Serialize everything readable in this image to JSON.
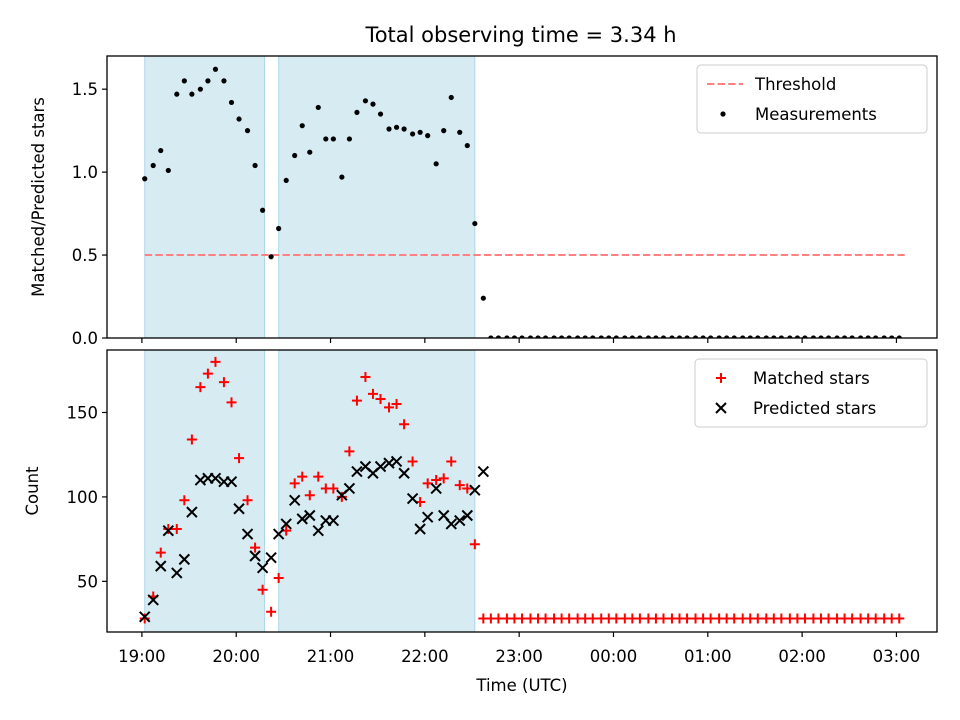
{
  "figure_title": "Total observing time = 3.34 h",
  "chart_data": [
    {
      "type": "scatter",
      "panel": "top",
      "title": "",
      "xlabel": "",
      "ylabel": "Matched/Predicted stars",
      "ylim": [
        0,
        1.7
      ],
      "yticks": [
        0.0,
        0.5,
        1.0,
        1.5
      ],
      "ytick_labels": [
        "0.0",
        "0.5",
        "1.0",
        "1.5"
      ],
      "legend_position": "top-right",
      "shaded_intervals": [
        [
          19.03,
          20.3
        ],
        [
          20.45,
          22.53
        ]
      ],
      "shade_color": "#add8e6",
      "series": [
        {
          "name": "Threshold",
          "kind": "line",
          "style": "dashed",
          "color": "#ff8080",
          "x": [
            19.03,
            27.1
          ],
          "y": [
            0.5,
            0.5
          ]
        },
        {
          "name": "Measurements",
          "kind": "scatter",
          "color": "#000000",
          "x": [
            19.03,
            19.12,
            19.2,
            19.28,
            19.37,
            19.45,
            19.53,
            19.62,
            19.7,
            19.78,
            19.87,
            19.95,
            20.03,
            20.12,
            20.2,
            20.28,
            20.37,
            20.45,
            20.53,
            20.62,
            20.7,
            20.78,
            20.87,
            20.95,
            21.03,
            21.12,
            21.2,
            21.28,
            21.37,
            21.45,
            21.53,
            21.62,
            21.7,
            21.78,
            21.87,
            21.95,
            22.03,
            22.12,
            22.2,
            22.28,
            22.37,
            22.45,
            22.53,
            22.62,
            22.7,
            22.78,
            22.87,
            22.95,
            23.03,
            23.12,
            23.2,
            23.28,
            23.37,
            23.45,
            23.53,
            23.62,
            23.7,
            23.78,
            23.87,
            23.95,
            24.03,
            24.12,
            24.2,
            24.28,
            24.37,
            24.45,
            24.53,
            24.62,
            24.7,
            24.78,
            24.87,
            24.95,
            25.03,
            25.12,
            25.2,
            25.28,
            25.37,
            25.45,
            25.53,
            25.62,
            25.7,
            25.78,
            25.87,
            25.95,
            26.03,
            26.12,
            26.2,
            26.28,
            26.37,
            26.45,
            26.53,
            26.62,
            26.7,
            26.78,
            26.87,
            26.95,
            27.03
          ],
          "y": [
            0.96,
            1.04,
            1.13,
            1.01,
            1.47,
            1.55,
            1.47,
            1.5,
            1.55,
            1.62,
            1.55,
            1.42,
            1.32,
            1.25,
            1.04,
            0.77,
            0.49,
            0.66,
            0.95,
            1.1,
            1.28,
            1.12,
            1.39,
            1.2,
            1.2,
            0.97,
            1.2,
            1.36,
            1.43,
            1.41,
            1.35,
            1.26,
            1.27,
            1.26,
            1.23,
            1.24,
            1.22,
            1.05,
            1.25,
            1.45,
            1.24,
            1.16,
            0.69,
            0.24,
            0,
            0,
            0,
            0,
            0,
            0,
            0,
            0,
            0,
            0,
            0,
            0,
            0,
            0,
            0,
            0,
            0,
            0,
            0,
            0,
            0,
            0,
            0,
            0,
            0,
            0,
            0,
            0,
            0,
            0,
            0,
            0,
            0,
            0,
            0,
            0,
            0,
            0,
            0,
            0,
            0,
            0,
            0,
            0,
            0,
            0,
            0,
            0,
            0,
            0,
            0,
            0,
            0
          ]
        }
      ]
    },
    {
      "type": "scatter",
      "panel": "bottom",
      "title": "",
      "xlabel": "Time (UTC)",
      "ylabel": "Count",
      "ylim": [
        20,
        187
      ],
      "yticks": [
        50,
        100,
        150
      ],
      "ytick_labels": [
        "50",
        "100",
        "150"
      ],
      "xticks": [
        19,
        20,
        21,
        22,
        23,
        24,
        25,
        26,
        27
      ],
      "xtick_labels": [
        "19:00",
        "20:00",
        "21:00",
        "22:00",
        "23:00",
        "00:00",
        "01:00",
        "02:00",
        "03:00"
      ],
      "xlim": [
        18.63,
        27.43
      ],
      "legend_position": "top-right",
      "shaded_intervals": [
        [
          19.03,
          20.3
        ],
        [
          20.45,
          22.53
        ]
      ],
      "shade_color": "#add8e6",
      "series": [
        {
          "name": "Matched stars",
          "kind": "scatter",
          "marker": "plus",
          "color": "#ff0000",
          "x": [
            19.03,
            19.12,
            19.2,
            19.28,
            19.37,
            19.45,
            19.53,
            19.62,
            19.7,
            19.78,
            19.87,
            19.95,
            20.03,
            20.12,
            20.2,
            20.28,
            20.37,
            20.45,
            20.53,
            20.62,
            20.7,
            20.78,
            20.87,
            20.95,
            21.03,
            21.12,
            21.2,
            21.28,
            21.37,
            21.45,
            21.53,
            21.62,
            21.7,
            21.78,
            21.87,
            21.95,
            22.03,
            22.12,
            22.2,
            22.28,
            22.37,
            22.45,
            22.53,
            22.62,
            22.7,
            22.78,
            22.87,
            22.95,
            23.03,
            23.12,
            23.2,
            23.28,
            23.37,
            23.45,
            23.53,
            23.62,
            23.7,
            23.78,
            23.87,
            23.95,
            24.03,
            24.12,
            24.2,
            24.28,
            24.37,
            24.45,
            24.53,
            24.62,
            24.7,
            24.78,
            24.87,
            24.95,
            25.03,
            25.12,
            25.2,
            25.28,
            25.37,
            25.45,
            25.53,
            25.62,
            25.7,
            25.78,
            25.87,
            25.95,
            26.03,
            26.12,
            26.2,
            26.28,
            26.37,
            26.45,
            26.53,
            26.62,
            26.7,
            26.78,
            26.87,
            26.95,
            27.03
          ],
          "y": [
            28,
            41,
            67,
            81,
            81,
            98,
            134,
            165,
            173,
            180,
            168,
            156,
            123,
            98,
            70,
            45,
            32,
            52,
            80,
            108,
            112,
            101,
            112,
            105,
            105,
            100,
            127,
            157,
            171,
            161,
            158,
            153,
            155,
            143,
            121,
            97,
            108,
            110,
            111,
            121,
            107,
            105,
            72,
            28,
            28,
            28,
            28,
            28,
            28,
            28,
            28,
            28,
            28,
            28,
            28,
            28,
            28,
            28,
            28,
            28,
            28,
            28,
            28,
            28,
            28,
            28,
            28,
            28,
            28,
            28,
            28,
            28,
            28,
            28,
            28,
            28,
            28,
            28,
            28,
            28,
            28,
            28,
            28,
            28,
            28,
            28,
            28,
            28,
            28,
            28,
            28,
            28,
            28,
            28,
            28,
            28,
            28
          ]
        },
        {
          "name": "Predicted stars",
          "kind": "scatter",
          "marker": "x",
          "color": "#000000",
          "x": [
            19.03,
            19.12,
            19.2,
            19.28,
            19.37,
            19.45,
            19.53,
            19.62,
            19.7,
            19.78,
            19.87,
            19.95,
            20.03,
            20.12,
            20.2,
            20.28,
            20.37,
            20.45,
            20.53,
            20.62,
            20.7,
            20.78,
            20.87,
            20.95,
            21.03,
            21.12,
            21.2,
            21.28,
            21.37,
            21.45,
            21.53,
            21.62,
            21.7,
            21.78,
            21.87,
            21.95,
            22.03,
            22.12,
            22.2,
            22.28,
            22.37,
            22.45,
            22.53,
            22.62
          ],
          "y": [
            29,
            39,
            59,
            80,
            55,
            63,
            91,
            110,
            111,
            111,
            109,
            109,
            93,
            78,
            65,
            58,
            64,
            78,
            84,
            98,
            87,
            89,
            80,
            86,
            86,
            101,
            105,
            115,
            118,
            114,
            118,
            120,
            121,
            114,
            99,
            81,
            88,
            105,
            89,
            84,
            86,
            89,
            104,
            115
          ]
        }
      ]
    }
  ]
}
